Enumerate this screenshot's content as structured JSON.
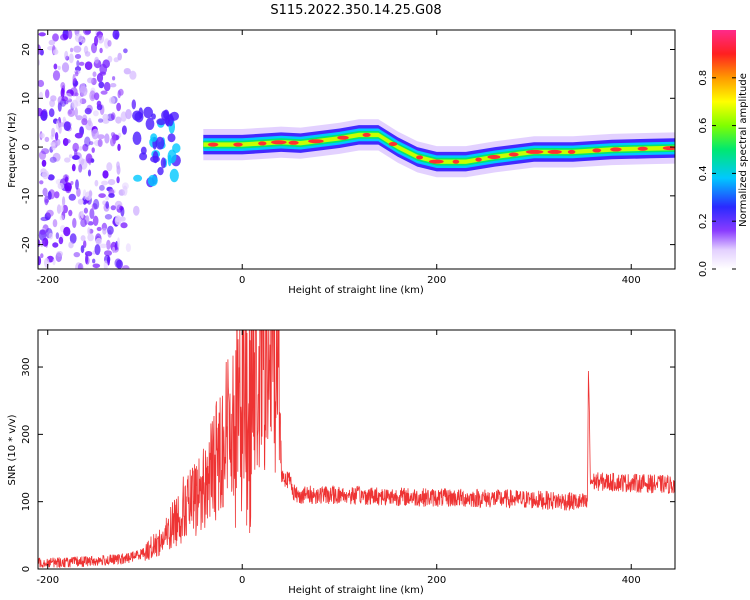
{
  "title": "S115.2022.350.14.25.G08",
  "chart_data": [
    {
      "type": "heatmap",
      "xlabel": "Height of straight line (km)",
      "ylabel": "Frequency (Hz)",
      "xlim": [
        -210,
        445
      ],
      "ylim": [
        -25,
        24
      ],
      "xticks": [
        -200,
        0,
        200,
        400
      ],
      "yticks": [
        -20,
        -10,
        0,
        10,
        20
      ],
      "colorbar": {
        "label": "Normalized spectral amplitude",
        "range": [
          0,
          1
        ],
        "ticks": [
          0.0,
          0.2,
          0.4,
          0.6,
          0.8
        ]
      },
      "ridge": {
        "x": [
          -40,
          0,
          40,
          60,
          100,
          120,
          140,
          160,
          180,
          200,
          230,
          260,
          300,
          340,
          380,
          420,
          445
        ],
        "frequency": [
          0.5,
          0.5,
          1,
          0.8,
          1.8,
          2.5,
          2.5,
          0,
          -2,
          -3,
          -3,
          -2,
          -1,
          -1,
          -0.5,
          -0.3,
          -0.2
        ]
      }
    },
    {
      "type": "line",
      "xlabel": "Height of straight line (km)",
      "ylabel": "SNR (10 * v/v)",
      "xlim": [
        -210,
        445
      ],
      "ylim": [
        0,
        355
      ],
      "xticks": [
        -200,
        0,
        200,
        400
      ],
      "yticks": [
        0,
        100,
        200,
        300
      ],
      "color": "#ee3333",
      "x": [
        -210,
        -180,
        -150,
        -120,
        -100,
        -80,
        -70,
        -60,
        -50,
        -40,
        -30,
        -20,
        -10,
        0,
        5,
        10,
        20,
        30,
        38,
        40,
        45,
        50,
        53,
        55,
        100,
        150,
        200,
        250,
        300,
        340,
        355,
        356,
        358,
        360,
        400,
        445
      ],
      "values": [
        10,
        10,
        12,
        15,
        25,
        45,
        70,
        90,
        100,
        120,
        150,
        190,
        230,
        250,
        260,
        270,
        290,
        305,
        320,
        140,
        135,
        130,
        115,
        110,
        110,
        108,
        106,
        105,
        103,
        100,
        98,
        310,
        130,
        130,
        128,
        125
      ]
    }
  ]
}
